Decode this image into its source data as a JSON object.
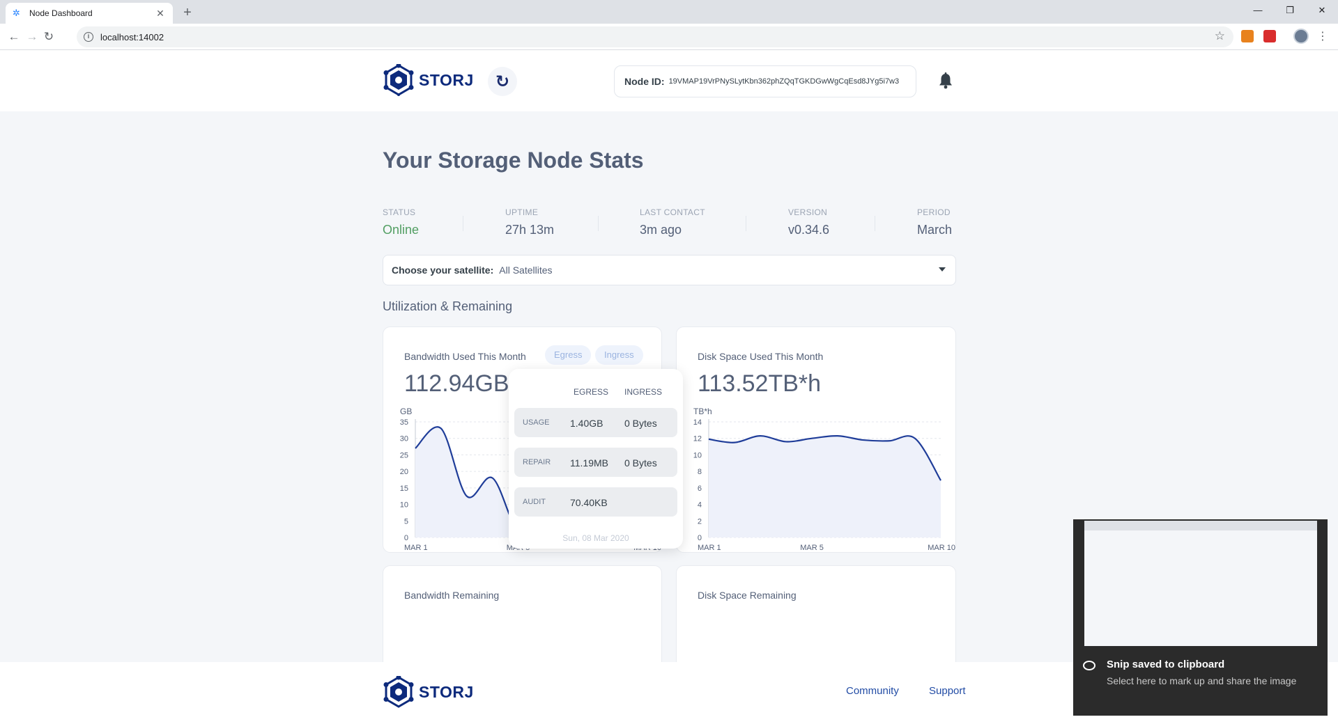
{
  "browser": {
    "tab_title": "Node Dashboard",
    "url": "localhost:14002"
  },
  "header": {
    "logo_text": "STORJ",
    "node_id_label": "Node ID:",
    "node_id_value": "19VMAP19VrPNySLytKbn362phZQqTGKDGwWgCqEsd8JYg5i7w3"
  },
  "page_title": "Your Storage Node Stats",
  "stats": [
    {
      "label": "STATUS",
      "value": "Online"
    },
    {
      "label": "UPTIME",
      "value": "27h 13m"
    },
    {
      "label": "LAST CONTACT",
      "value": "3m ago"
    },
    {
      "label": "VERSION",
      "value": "v0.34.6"
    },
    {
      "label": "PERIOD",
      "value": "March"
    }
  ],
  "satellite": {
    "label": "Choose your satellite:",
    "value": "All Satellites"
  },
  "section_title": "Utilization & Remaining",
  "bandwidth_card": {
    "title": "Bandwidth Used This Month",
    "egress_pill": "Egress",
    "ingress_pill": "Ingress",
    "total": "112.94GB"
  },
  "disk_card": {
    "title": "Disk Space Used This Month",
    "total": "113.52TB*h"
  },
  "tooltip": {
    "col_egress": "EGRESS",
    "col_ingress": "INGRESS",
    "rows": [
      {
        "label": "USAGE",
        "egress": "1.40GB",
        "ingress": "0 Bytes"
      },
      {
        "label": "REPAIR",
        "egress": "11.19MB",
        "ingress": "0 Bytes"
      },
      {
        "label": "AUDIT",
        "egress": "70.40KB",
        "ingress": ""
      }
    ],
    "date": "Sun, 08 Mar 2020"
  },
  "bandwidth_remaining_title": "Bandwidth Remaining",
  "disk_remaining_title": "Disk Space Remaining",
  "footer": {
    "logo_text": "STORJ",
    "community": "Community",
    "support": "Support"
  },
  "toast": {
    "title": "Snip saved to clipboard",
    "subtitle": "Select here to mark up and share the image"
  },
  "colors": {
    "line": "#1f3d99",
    "area": "#eef1fa",
    "online": "#519e62",
    "brand": "#0d2a7c"
  },
  "chart_data": [
    {
      "type": "area",
      "ylabel": "GB",
      "x": [
        "MAR 1",
        "MAR 2",
        "MAR 3",
        "MAR 4",
        "MAR 5",
        "MAR 6",
        "MAR 7",
        "MAR 8",
        "MAR 9",
        "MAR 10"
      ],
      "x_tick_labels": [
        "MAR 1",
        "MAR 5",
        "MAR 10"
      ],
      "values": [
        27,
        33,
        12.5,
        18,
        2,
        5,
        11,
        1.4,
        1.2,
        1.0
      ],
      "yticks": [
        0,
        5,
        10,
        15,
        20,
        25,
        30,
        35
      ],
      "ylim": [
        0,
        35
      ],
      "highlight_x": "MAR 8"
    },
    {
      "type": "area",
      "ylabel": "TB*h",
      "x": [
        "MAR 1",
        "MAR 2",
        "MAR 3",
        "MAR 4",
        "MAR 5",
        "MAR 6",
        "MAR 7",
        "MAR 8",
        "MAR 9",
        "MAR 10"
      ],
      "x_tick_labels": [
        "MAR 1",
        "MAR 5",
        "MAR 10"
      ],
      "values": [
        11.9,
        11.5,
        12.3,
        11.6,
        12.0,
        12.3,
        11.8,
        11.7,
        12.0,
        6.9
      ],
      "yticks": [
        0,
        2,
        4,
        6,
        8,
        10,
        12,
        14
      ],
      "ylim": [
        0,
        14
      ]
    }
  ]
}
